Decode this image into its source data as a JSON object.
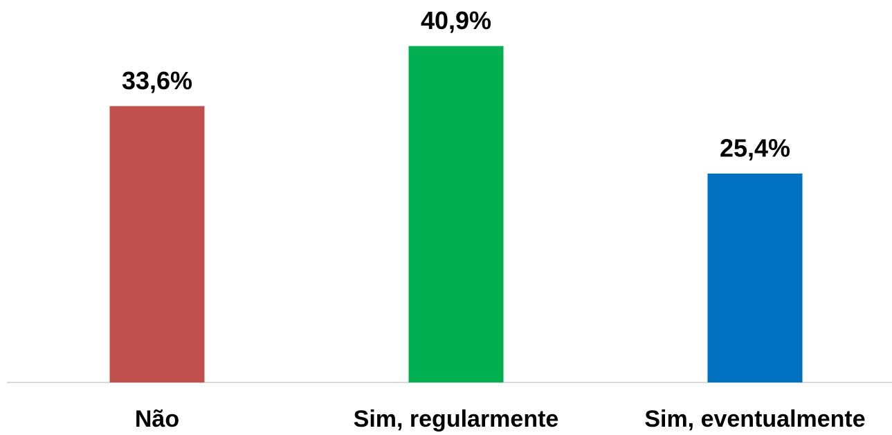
{
  "chart_data": {
    "type": "bar",
    "categories": [
      "Não",
      "Sim, regularmente",
      "Sim, eventualmente"
    ],
    "values": [
      33.6,
      40.9,
      25.4
    ],
    "value_labels": [
      "33,6%",
      "40,9%",
      "25,4%"
    ],
    "colors": [
      "#c0504d",
      "#00b050",
      "#0070c0"
    ],
    "ylim": [
      0,
      46.5
    ]
  }
}
